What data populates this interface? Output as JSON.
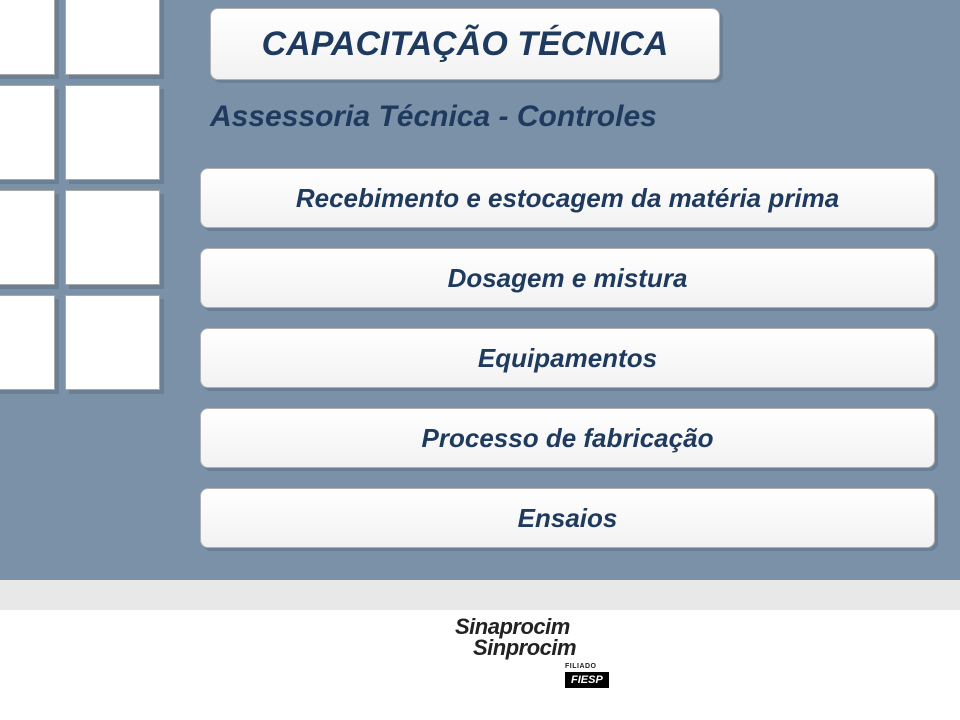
{
  "title": "CAPACITAÇÃO TÉCNICA",
  "subtitle": "Assessoria Técnica  - Controles",
  "bars": {
    "b1": "Recebimento e estocagem da matéria prima",
    "b2": "Dosagem e mistura",
    "b3": "Equipamentos",
    "b4": "Processo de fabricação",
    "b5": "Ensaios"
  },
  "footer": {
    "logo1": "Sinaprocim",
    "logo2": "Sinprocim",
    "filiado_label": "FILIADO",
    "fiesp": "FIESP"
  },
  "colors": {
    "bg_top": "#7a91a8",
    "text_primary": "#1f3a5f",
    "box_bg": "#ffffff",
    "shadow": "#6b7f95"
  }
}
